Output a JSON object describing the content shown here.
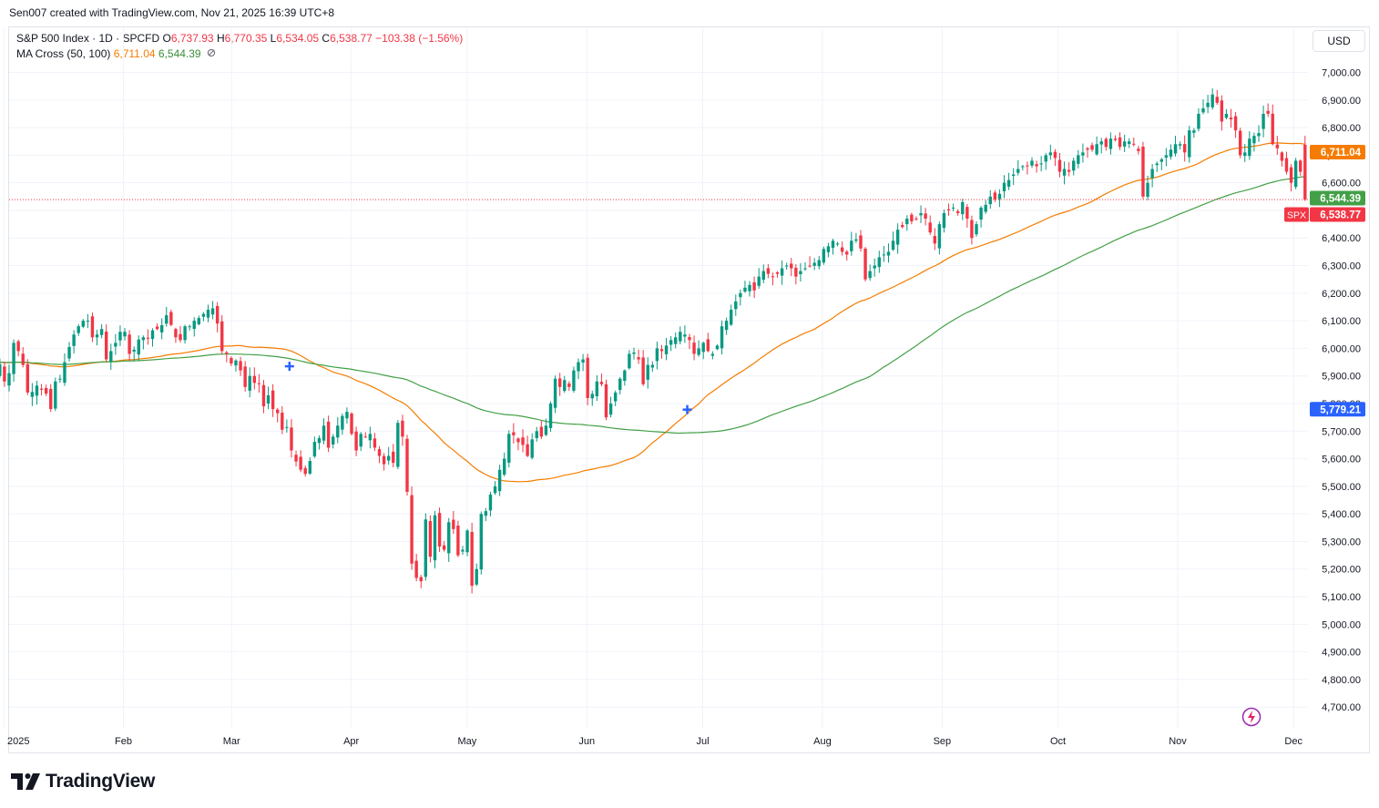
{
  "credit": "Sen007 created with TradingView.com, Nov 21, 2025 16:39 UTC+8",
  "legend": {
    "symbol": "S&P 500 Index · 1D · SPCFD",
    "open_label": "O",
    "open": "6,737.93",
    "high_label": "H",
    "high": "6,770.35",
    "low_label": "L",
    "low": "6,534.05",
    "close_label": "C",
    "close": "6,538.77",
    "change": "−103.38 (−1.56%)",
    "indicator": "MA Cross (50, 100)",
    "ma50": "6,711.04",
    "ma100": "6,544.39",
    "eye_icon": "eye-off-icon"
  },
  "currency": "USD",
  "branding": {
    "name": "TradingView"
  },
  "colors": {
    "up": "#089981",
    "down": "#f23645",
    "ma50": "#f57c00",
    "ma100": "#43a047",
    "cross": "#2962ff",
    "grid": "#f0f3fa",
    "axis_text": "#131722"
  },
  "chart_data": {
    "type": "candlestick",
    "title": "S&P 500 Index · 1D · SPCFD",
    "ylim": [
      4650,
      7150
    ],
    "y_ticks": [
      4700,
      4800,
      4900,
      5000,
      5100,
      5200,
      5300,
      5400,
      5500,
      5600,
      5700,
      5800,
      5900,
      6000,
      6100,
      6200,
      6300,
      6400,
      6500,
      6600,
      6700,
      6800,
      6900,
      7000
    ],
    "y_tick_labels": [
      "4,700.00",
      "4,800.00",
      "4,900.00",
      "5,000.00",
      "5,100.00",
      "5,200.00",
      "5,300.00",
      "5,400.00",
      "5,500.00",
      "5,600.00",
      "5,700.00",
      "5,800.00",
      "5,900.00",
      "6,000.00",
      "6,100.00",
      "6,200.00",
      "6,300.00",
      "6,400.00",
      "6,500.00",
      "6,600.00",
      "6,700.00",
      "6,800.00",
      "6,900.00",
      "7,000.00"
    ],
    "x_ticks": [
      {
        "label": "2025",
        "day": 0
      },
      {
        "label": "Feb",
        "day": 31
      },
      {
        "label": "Mar",
        "day": 59
      },
      {
        "label": "Apr",
        "day": 90
      },
      {
        "label": "May",
        "day": 120
      },
      {
        "label": "Jun",
        "day": 151
      },
      {
        "label": "Jul",
        "day": 181
      },
      {
        "label": "Aug",
        "day": 212
      },
      {
        "label": "Sep",
        "day": 243
      },
      {
        "label": "Oct",
        "day": 273
      },
      {
        "label": "Nov",
        "day": 304
      },
      {
        "label": "Dec",
        "day": 334
      }
    ],
    "x_range_days": [
      -1,
      340
    ],
    "closes": [
      5943,
      5880,
      5910,
      6020,
      5990,
      5940,
      5840,
      5842,
      5865,
      5850,
      5836,
      5780,
      5880,
      5890,
      5950,
      6005,
      6050,
      6080,
      6100,
      6100,
      6040,
      6050,
      6070,
      5960,
      5990,
      6020,
      6060,
      6060,
      5980,
      5995,
      6032,
      6040,
      6035,
      6065,
      6070,
      6084,
      6120,
      6085,
      6040,
      6030,
      6080,
      6080,
      6100,
      6110,
      6125,
      6140,
      6145,
      6090,
      5990,
      5980,
      5945,
      5956,
      5920,
      5860,
      5900,
      5875,
      5870,
      5790,
      5830,
      5780,
      5765,
      5705,
      5715,
      5630,
      5590,
      5560,
      5545,
      5592,
      5661,
      5675,
      5720,
      5640,
      5680,
      5720,
      5755,
      5770,
      5690,
      5630,
      5690,
      5680,
      5690,
      5640,
      5610,
      5580,
      5610,
      5585,
      5730,
      5680,
      5480,
      5220,
      5168,
      5156,
      5380,
      5245,
      5395,
      5282,
      5270,
      5370,
      5345,
      5250,
      5270,
      5340,
      5140,
      5200,
      5400,
      5410,
      5470,
      5500,
      5560,
      5600,
      5690,
      5685,
      5660,
      5650,
      5610,
      5670,
      5700,
      5680,
      5720,
      5800,
      5890,
      5860,
      5885,
      5860,
      5920,
      5950,
      5960,
      5820,
      5835,
      5880,
      5870,
      5750,
      5800,
      5840,
      5890,
      5920,
      5980,
      5985,
      5960,
      5870,
      5940,
      5940,
      6000,
      5990,
      6010,
      6030,
      6040,
      6060,
      6050,
      6030,
      5980,
      6000,
      6020,
      5990,
      5980,
      6010,
      6080,
      6100,
      6140,
      6170,
      6200,
      6220,
      6230,
      6210,
      6260,
      6280,
      6270,
      6260,
      6270,
      6290,
      6300,
      6290,
      6260,
      6280,
      6290,
      6300,
      6310,
      6320,
      6360,
      6370,
      6390,
      6380,
      6350,
      6340,
      6390,
      6395,
      6362,
      6250,
      6280,
      6300,
      6330,
      6340,
      6350,
      6390,
      6430,
      6440,
      6470,
      6460,
      6470,
      6490,
      6470,
      6420,
      6380,
      6450,
      6490,
      6500,
      6510,
      6490,
      6530,
      6470,
      6400,
      6450,
      6510,
      6520,
      6550,
      6540,
      6560,
      6600,
      6610,
      6630,
      6650,
      6660,
      6660,
      6680,
      6660,
      6670,
      6700,
      6710,
      6690,
      6640,
      6650,
      6640,
      6680,
      6700,
      6710,
      6720,
      6720,
      6740,
      6750,
      6730,
      6760,
      6755,
      6730,
      6750,
      6750,
      6740,
      6715,
      6550,
      6600,
      6650,
      6670,
      6685,
      6700,
      6720,
      6740,
      6740,
      6710,
      6790,
      6790,
      6850,
      6870,
      6890,
      6920,
      6890,
      6822,
      6850,
      6830,
      6790,
      6700,
      6710,
      6760,
      6770,
      6780,
      6850,
      6850,
      6740,
      6725,
      6680,
      6640,
      6600,
      6680,
      6640,
      6539
    ],
    "ma_cross": {
      "name": "MA Cross (50, 100)",
      "ma50_last": 6711.04,
      "ma100_last": 6544.39,
      "cross_points": [
        {
          "day": 74,
          "value": 5935
        },
        {
          "day": 177,
          "value": 5778
        }
      ]
    },
    "price_labels": [
      {
        "text": "6,711.04",
        "value": 6711.04,
        "color": "#f57c00"
      },
      {
        "text": "6,544.39",
        "value": 6544.39,
        "color": "#43a047"
      },
      {
        "text": "6,538.77",
        "value": 6538.77,
        "color": "#f23645",
        "tag": "SPX"
      },
      {
        "text": "5,779.21",
        "value": 5779.21,
        "color": "#2962ff"
      }
    ]
  }
}
